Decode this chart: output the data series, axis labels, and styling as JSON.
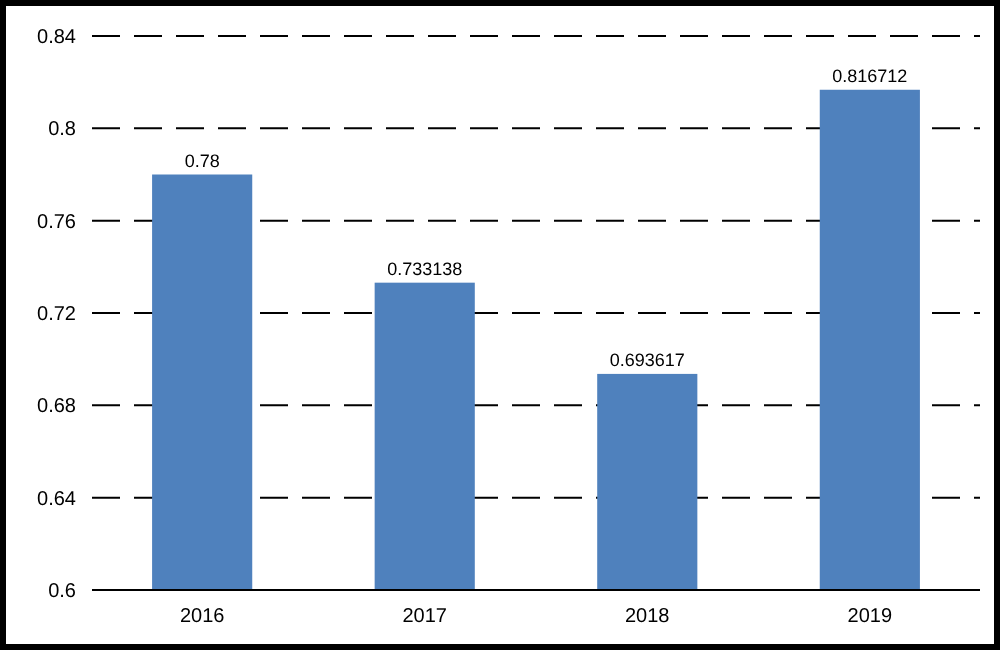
{
  "chart_data": {
    "type": "bar",
    "categories": [
      "2016",
      "2017",
      "2018",
      "2019"
    ],
    "values": [
      0.78,
      0.733138,
      0.693617,
      0.816712
    ],
    "color": "#4f81bd",
    "ylim": [
      0.6,
      0.84
    ],
    "yticks": [
      0.6,
      0.64,
      0.68,
      0.72,
      0.76,
      0.8,
      0.84
    ],
    "grid": "y",
    "data_labels": true
  }
}
